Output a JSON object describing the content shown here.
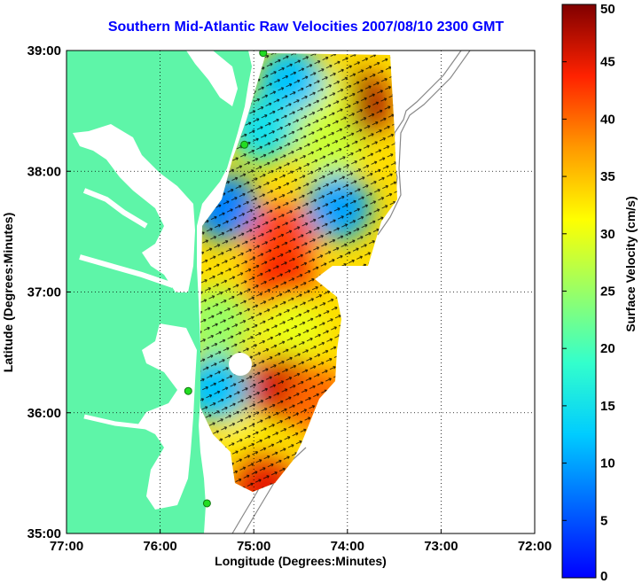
{
  "title": "Southern Mid-Atlantic Raw Velocities 2007/08/10 2300 GMT",
  "xlabel": "Longitude (Degrees:Minutes)",
  "ylabel": "Latitude (Degrees:Minutes)",
  "x_ticks": [
    "77:00",
    "76:00",
    "75:00",
    "74:00",
    "73:00",
    "72:00"
  ],
  "y_ticks": [
    "39:00",
    "38:00",
    "37:00",
    "36:00",
    "35:00"
  ],
  "colorbar": {
    "label": "Surface Velocity (cm/s)",
    "ticks": [
      "50",
      "45",
      "40",
      "35",
      "30",
      "25",
      "20",
      "15",
      "10",
      "5",
      "0"
    ],
    "range": [
      0,
      50
    ],
    "colormap": "jet"
  },
  "colors": {
    "land": "#5ef5a8",
    "ocean": "#ffffff",
    "title": "#0000ff",
    "station": "#22dd22",
    "bathymetry": "#888888"
  },
  "chart_data": {
    "type": "heatmap",
    "title": "Southern Mid-Atlantic Raw Velocities 2007/08/10 2300 GMT",
    "xlabel": "Longitude (Degrees:Minutes)",
    "ylabel": "Latitude (Degrees:Minutes)",
    "xlim": [
      -77,
      -72
    ],
    "ylim": [
      35,
      39
    ],
    "grid": true,
    "color_label": "Surface Velocity (cm/s)",
    "color_range": [
      0,
      50
    ],
    "regions": [
      {
        "lon": -73.9,
        "lat": 38.55,
        "speed": 48
      },
      {
        "lon": -74.3,
        "lat": 38.6,
        "speed": 30
      },
      {
        "lon": -74.6,
        "lat": 38.75,
        "speed": 12
      },
      {
        "lon": -74.9,
        "lat": 38.35,
        "speed": 15
      },
      {
        "lon": -74.2,
        "lat": 38.2,
        "speed": 28
      },
      {
        "lon": -74.1,
        "lat": 37.7,
        "speed": 10
      },
      {
        "lon": -75.3,
        "lat": 37.7,
        "speed": 8
      },
      {
        "lon": -74.7,
        "lat": 37.45,
        "speed": 42
      },
      {
        "lon": -74.7,
        "lat": 37.05,
        "speed": 44
      },
      {
        "lon": -75.4,
        "lat": 36.75,
        "speed": 25
      },
      {
        "lon": -74.6,
        "lat": 36.7,
        "speed": 30
      },
      {
        "lon": -75.4,
        "lat": 36.2,
        "speed": 12
      },
      {
        "lon": -74.7,
        "lat": 36.2,
        "speed": 46
      },
      {
        "lon": -74.3,
        "lat": 36.1,
        "speed": 40
      },
      {
        "lon": -75.0,
        "lat": 35.7,
        "speed": 32
      },
      {
        "lon": -74.9,
        "lat": 35.42,
        "speed": 45
      }
    ],
    "stations": [
      {
        "lon": -74.9,
        "lat": 38.98
      },
      {
        "lon": -75.1,
        "lat": 38.22
      },
      {
        "lon": -75.7,
        "lat": 36.18
      },
      {
        "lon": -75.5,
        "lat": 35.25
      }
    ]
  }
}
